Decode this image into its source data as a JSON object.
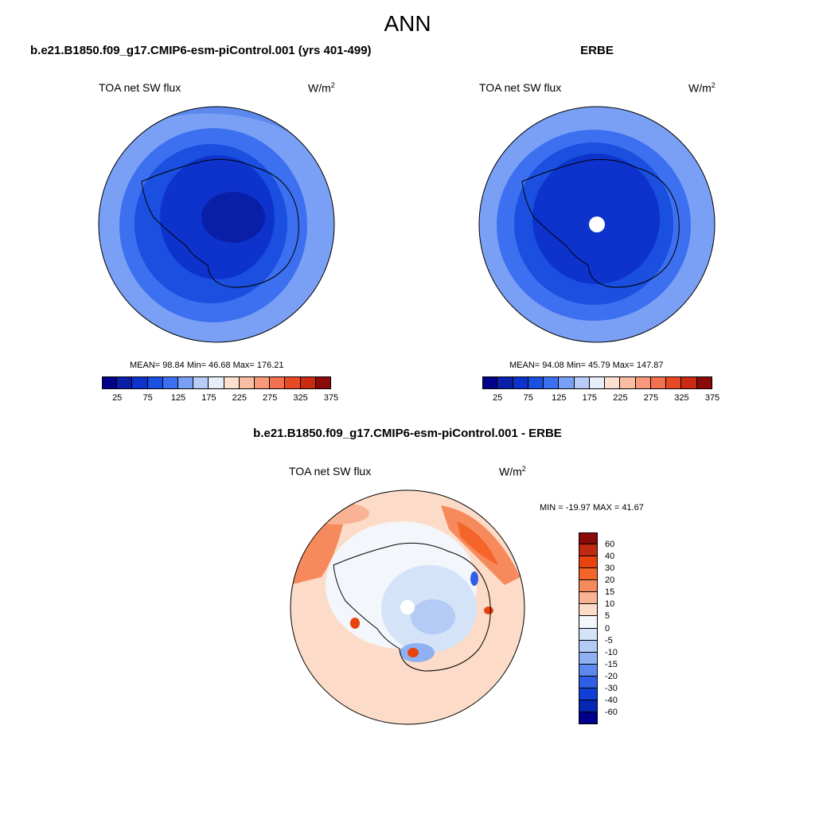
{
  "figure": {
    "title": "ANN",
    "case_title": "b.e21.B1850.f09_g17.CMIP6-esm-piControl.001 (yrs 401-499)",
    "obs_title": "ERBE",
    "diff_title": "b.e21.B1850.f09_g17.CMIP6-esm-piControl.001 - ERBE"
  },
  "panels": {
    "case": {
      "variable": "TOA net SW flux",
      "units_base": "W/m",
      "units_exp": "2",
      "stats": "MEAN=  98.84  Min=  46.68  Max= 176.21"
    },
    "obs": {
      "variable": "TOA net SW flux",
      "units_base": "W/m",
      "units_exp": "2",
      "stats": "MEAN=  94.08  Min=  45.79  Max= 147.87"
    },
    "diff": {
      "variable": "TOA net SW flux",
      "units_base": "W/m",
      "units_exp": "2",
      "stats": "MIN = -19.97 MAX =  41.67"
    }
  },
  "colorbar_main": {
    "colors": [
      "#00008b",
      "#0a1fa8",
      "#0d33cc",
      "#1a4fe0",
      "#3d70f0",
      "#7aa0f5",
      "#b8ccf7",
      "#e6eefa",
      "#fde0cf",
      "#f9bda3",
      "#f7997a",
      "#f2724f",
      "#e84a26",
      "#c92a12",
      "#8b0a0a"
    ],
    "tick_labels": [
      "25",
      "75",
      "125",
      "175",
      "225",
      "275",
      "325",
      "375"
    ]
  },
  "colorbar_diff": {
    "colors": [
      "#8b0a0a",
      "#c02a0e",
      "#e8430f",
      "#f5652a",
      "#f78a5c",
      "#f9b394",
      "#fcdcc8",
      "#f3f6fb",
      "#d4e3f8",
      "#b3cbf5",
      "#8fb1f3",
      "#5d89ee",
      "#2f5fe6",
      "#0f3fd6",
      "#0527b4",
      "#00008b"
    ],
    "tick_labels": [
      "60",
      "40",
      "30",
      "20",
      "15",
      "10",
      "5",
      "0",
      "-5",
      "-10",
      "-15",
      "-20",
      "-30",
      "-40",
      "-60"
    ]
  }
}
